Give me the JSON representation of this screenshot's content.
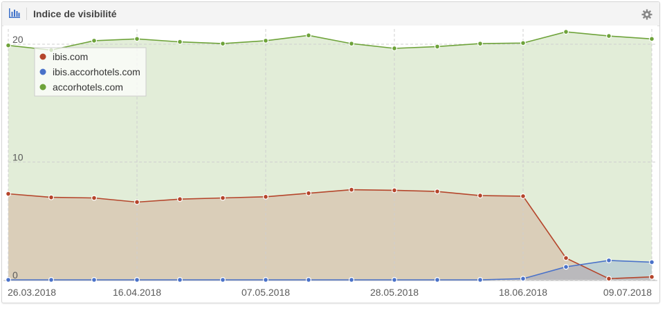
{
  "header": {
    "title": "Indice de visibilité",
    "chart_icon": "bar-chart-icon",
    "settings_icon": "gear-icon"
  },
  "chart_data": {
    "type": "area",
    "x": [
      "26.03.2018",
      "02.04.2018",
      "09.04.2018",
      "16.04.2018",
      "23.04.2018",
      "30.04.2018",
      "07.05.2018",
      "14.05.2018",
      "21.05.2018",
      "28.05.2018",
      "04.06.2018",
      "11.06.2018",
      "18.06.2018",
      "25.06.2018",
      "02.07.2018",
      "09.07.2018"
    ],
    "x_tick_labels": [
      "26.03.2018",
      "16.04.2018",
      "07.05.2018",
      "28.05.2018",
      "18.06.2018",
      "09.07.2018"
    ],
    "y_ticks": [
      0,
      10,
      20
    ],
    "ylim": [
      0,
      21.2
    ],
    "grid": true,
    "legend_position": "top-left",
    "series": [
      {
        "name": "ibis.com",
        "color": "#b5452b",
        "values": [
          7.3,
          7.0,
          6.95,
          6.6,
          6.85,
          6.95,
          7.05,
          7.35,
          7.65,
          7.6,
          7.5,
          7.15,
          7.1,
          1.85,
          0.1,
          0.25
        ]
      },
      {
        "name": "ibis.accorhotels.com",
        "color": "#4a72c9",
        "values": [
          0,
          0,
          0,
          0,
          0,
          0,
          0,
          0,
          0,
          0,
          0,
          0,
          0.1,
          1.1,
          1.65,
          1.5
        ]
      },
      {
        "name": "accorhotels.com",
        "color": "#6ea33a",
        "values": [
          19.9,
          19.5,
          20.3,
          20.45,
          20.2,
          20.05,
          20.3,
          20.75,
          20.05,
          19.65,
          19.8,
          20.05,
          20.1,
          21.05,
          20.7,
          20.45
        ]
      }
    ]
  }
}
